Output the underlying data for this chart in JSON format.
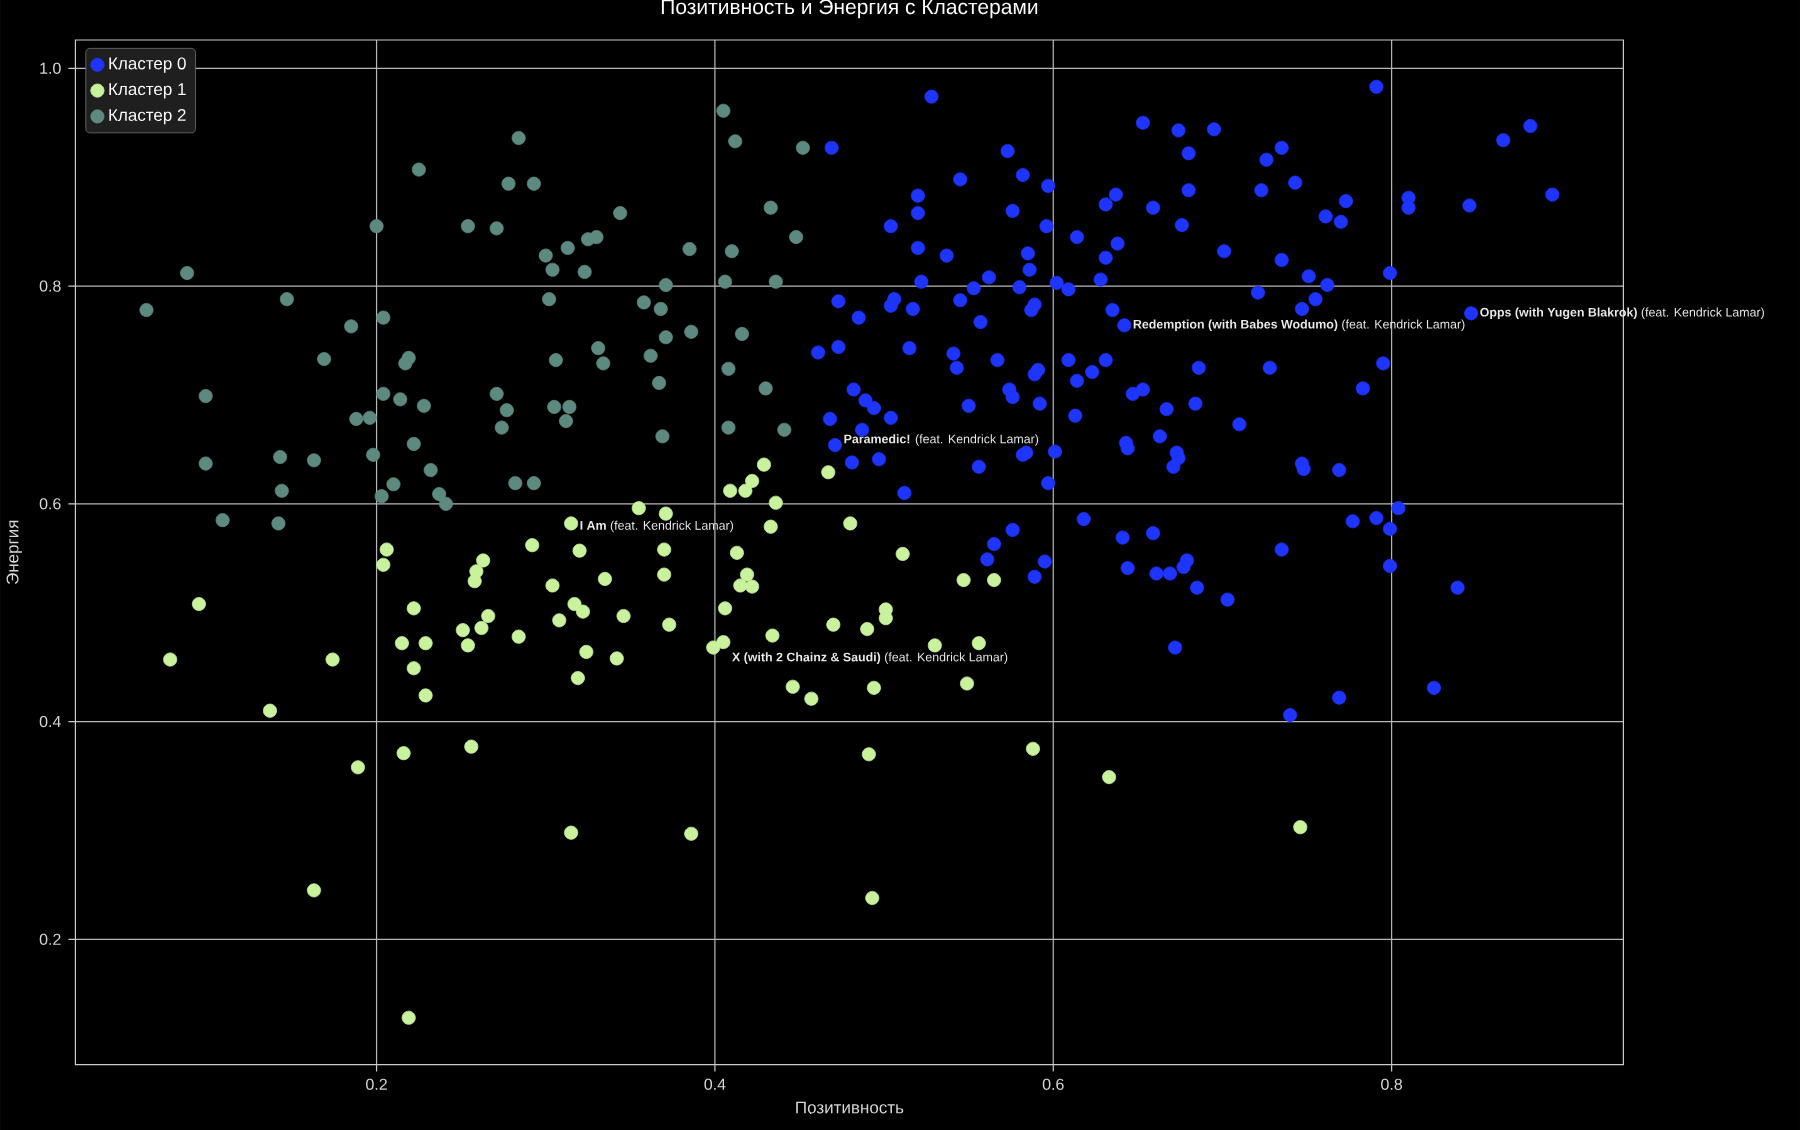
{
  "chart_data": {
    "type": "scatter",
    "title": "Позитивность и Энергия с Кластерами",
    "xlabel": "Позитивность",
    "ylabel": "Энергия",
    "series": [
      {
        "name": "Кластер 0",
        "color": "#1e34ff",
        "x": [
          0.528,
          0.469,
          0.573,
          0.545,
          0.582,
          0.597,
          0.52,
          0.52,
          0.576,
          0.504,
          0.596,
          0.614,
          0.631,
          0.637,
          0.52,
          0.537,
          0.585,
          0.586,
          0.631,
          0.638,
          0.522,
          0.562,
          0.553,
          0.58,
          0.602,
          0.609,
          0.628,
          0.473,
          0.506,
          0.504,
          0.517,
          0.545,
          0.589,
          0.587,
          0.635,
          0.485,
          0.557,
          0.473,
          0.461,
          0.515,
          0.541,
          0.543,
          0.567,
          0.609,
          0.631,
          0.614,
          0.623,
          0.589,
          0.591,
          0.482,
          0.489,
          0.494,
          0.574,
          0.576,
          0.592,
          0.55,
          0.468,
          0.504,
          0.487,
          0.613,
          0.471,
          0.497,
          0.481,
          0.582,
          0.584,
          0.601,
          0.556,
          0.597,
          0.512,
          0.618,
          0.576,
          0.565,
          0.561,
          0.595,
          0.589,
          0.791,
          0.653,
          0.674,
          0.695,
          0.68,
          0.726,
          0.735,
          0.866,
          0.882,
          0.659,
          0.68,
          0.723,
          0.743,
          0.676,
          0.773,
          0.761,
          0.77,
          0.81,
          0.81,
          0.846,
          0.895,
          0.701,
          0.735,
          0.751,
          0.762,
          0.799,
          0.721,
          0.755,
          0.747,
          0.642,
          0.847,
          0.686,
          0.728,
          0.795,
          0.783,
          0.647,
          0.653,
          0.667,
          0.684,
          0.71,
          0.663,
          0.643,
          0.644,
          0.673,
          0.674,
          0.671,
          0.747,
          0.748,
          0.769,
          0.804,
          0.777,
          0.791,
          0.799,
          0.641,
          0.659,
          0.735,
          0.644,
          0.661,
          0.669,
          0.677,
          0.679,
          0.685,
          0.703,
          0.799,
          0.839,
          0.672,
          0.769,
          0.825,
          0.74
        ],
        "values": [
          0.974,
          0.927,
          0.924,
          0.898,
          0.902,
          0.892,
          0.883,
          0.867,
          0.869,
          0.855,
          0.855,
          0.845,
          0.875,
          0.884,
          0.835,
          0.828,
          0.83,
          0.815,
          0.826,
          0.839,
          0.804,
          0.808,
          0.798,
          0.799,
          0.803,
          0.797,
          0.806,
          0.786,
          0.788,
          0.782,
          0.779,
          0.787,
          0.783,
          0.778,
          0.778,
          0.771,
          0.767,
          0.744,
          0.739,
          0.743,
          0.738,
          0.725,
          0.732,
          0.732,
          0.732,
          0.713,
          0.721,
          0.719,
          0.723,
          0.705,
          0.695,
          0.688,
          0.705,
          0.698,
          0.692,
          0.69,
          0.678,
          0.679,
          0.668,
          0.681,
          0.654,
          0.641,
          0.638,
          0.645,
          0.647,
          0.648,
          0.634,
          0.619,
          0.61,
          0.586,
          0.576,
          0.563,
          0.549,
          0.547,
          0.533,
          0.983,
          0.95,
          0.943,
          0.944,
          0.922,
          0.916,
          0.927,
          0.934,
          0.947,
          0.872,
          0.888,
          0.888,
          0.895,
          0.856,
          0.878,
          0.864,
          0.859,
          0.881,
          0.872,
          0.874,
          0.884,
          0.832,
          0.824,
          0.809,
          0.801,
          0.812,
          0.794,
          0.788,
          0.779,
          0.764,
          0.775,
          0.725,
          0.725,
          0.729,
          0.706,
          0.701,
          0.705,
          0.687,
          0.692,
          0.673,
          0.662,
          0.656,
          0.651,
          0.647,
          0.642,
          0.634,
          0.637,
          0.632,
          0.631,
          0.596,
          0.584,
          0.587,
          0.577,
          0.569,
          0.573,
          0.558,
          0.541,
          0.536,
          0.536,
          0.542,
          0.548,
          0.523,
          0.512,
          0.543,
          0.523,
          0.468,
          0.422,
          0.431,
          0.406
        ]
      },
      {
        "name": "Кластер 1",
        "color": "#c8f29c",
        "x": [
          0.429,
          0.467,
          0.409,
          0.418,
          0.422,
          0.436,
          0.355,
          0.371,
          0.48,
          0.433,
          0.315,
          0.206,
          0.204,
          0.292,
          0.32,
          0.263,
          0.259,
          0.258,
          0.304,
          0.095,
          0.222,
          0.317,
          0.322,
          0.266,
          0.251,
          0.262,
          0.308,
          0.284,
          0.215,
          0.229,
          0.254,
          0.324,
          0.078,
          0.174,
          0.222,
          0.319,
          0.229,
          0.137,
          0.216,
          0.256,
          0.189,
          0.315,
          0.163,
          0.219,
          0.37,
          0.413,
          0.511,
          0.335,
          0.37,
          0.419,
          0.415,
          0.422,
          0.547,
          0.565,
          0.346,
          0.373,
          0.406,
          0.501,
          0.501,
          0.47,
          0.49,
          0.434,
          0.342,
          0.399,
          0.405,
          0.53,
          0.556,
          0.446,
          0.457,
          0.494,
          0.549,
          0.491,
          0.588,
          0.633,
          0.386,
          0.493,
          0.746
        ],
        "values": [
          0.636,
          0.629,
          0.612,
          0.612,
          0.621,
          0.601,
          0.596,
          0.591,
          0.582,
          0.579,
          0.582,
          0.558,
          0.544,
          0.562,
          0.557,
          0.548,
          0.538,
          0.529,
          0.525,
          0.508,
          0.504,
          0.508,
          0.501,
          0.497,
          0.484,
          0.486,
          0.493,
          0.478,
          0.472,
          0.472,
          0.47,
          0.464,
          0.457,
          0.457,
          0.449,
          0.44,
          0.424,
          0.41,
          0.371,
          0.377,
          0.358,
          0.298,
          0.245,
          0.128,
          0.558,
          0.555,
          0.554,
          0.531,
          0.535,
          0.535,
          0.525,
          0.524,
          0.53,
          0.53,
          0.497,
          0.489,
          0.504,
          0.503,
          0.495,
          0.489,
          0.485,
          0.479,
          0.458,
          0.468,
          0.473,
          0.47,
          0.472,
          0.432,
          0.421,
          0.431,
          0.435,
          0.37,
          0.375,
          0.349,
          0.297,
          0.238,
          0.303
        ]
      },
      {
        "name": "Кластер 2",
        "color": "#5d8a80",
        "x": [
          0.284,
          0.225,
          0.278,
          0.293,
          0.2,
          0.254,
          0.271,
          0.325,
          0.33,
          0.313,
          0.3,
          0.304,
          0.323,
          0.088,
          0.064,
          0.147,
          0.302,
          0.185,
          0.204,
          0.169,
          0.219,
          0.217,
          0.306,
          0.331,
          0.099,
          0.204,
          0.214,
          0.228,
          0.271,
          0.277,
          0.274,
          0.305,
          0.314,
          0.312,
          0.188,
          0.196,
          0.222,
          0.099,
          0.143,
          0.163,
          0.198,
          0.232,
          0.144,
          0.21,
          0.203,
          0.237,
          0.241,
          0.282,
          0.293,
          0.109,
          0.142,
          0.405,
          0.412,
          0.452,
          0.344,
          0.433,
          0.385,
          0.41,
          0.448,
          0.371,
          0.406,
          0.436,
          0.358,
          0.368,
          0.386,
          0.371,
          0.416,
          0.334,
          0.362,
          0.367,
          0.408,
          0.43,
          0.408,
          0.441,
          0.369
        ],
        "values": [
          0.936,
          0.907,
          0.894,
          0.894,
          0.855,
          0.855,
          0.853,
          0.843,
          0.845,
          0.835,
          0.828,
          0.815,
          0.813,
          0.812,
          0.778,
          0.788,
          0.788,
          0.763,
          0.771,
          0.733,
          0.734,
          0.729,
          0.732,
          0.743,
          0.699,
          0.701,
          0.696,
          0.69,
          0.701,
          0.686,
          0.67,
          0.689,
          0.689,
          0.676,
          0.678,
          0.679,
          0.655,
          0.637,
          0.643,
          0.64,
          0.645,
          0.631,
          0.612,
          0.618,
          0.607,
          0.609,
          0.6,
          0.619,
          0.619,
          0.585,
          0.582,
          0.961,
          0.933,
          0.927,
          0.867,
          0.872,
          0.834,
          0.832,
          0.845,
          0.801,
          0.804,
          0.804,
          0.785,
          0.779,
          0.758,
          0.753,
          0.756,
          0.729,
          0.736,
          0.711,
          0.724,
          0.706,
          0.67,
          0.668,
          0.662
        ]
      }
    ],
    "xlim": [
      0.022,
      0.937
    ],
    "ylim": [
      0.085,
      1.026
    ],
    "xticks": [
      0.2,
      0.4,
      0.6,
      0.8
    ],
    "yticks": [
      0.2,
      0.4,
      0.6,
      0.8,
      {
        "value": 1,
        "label": "1.0"
      }
    ],
    "grid": true,
    "legend": "top left",
    "marker": "circle",
    "annotations": [
      {
        "text": "**Opps (with Yugen Blakrok)** (feat. Kendrick Lamar)",
        "x": 0.847,
        "y": 0.775
      },
      {
        "text": "**Redemption (with Babes Wodumo)** (feat. Kendrick Lamar)",
        "x": 0.642,
        "y": 0.764
      },
      {
        "text": "**Paramedic!** (feat. Kendrick Lamar)",
        "x": 0.471,
        "y": 0.654
      },
      {
        "text": "**I Am** (feat. Kendrick Lamar)",
        "x": 0.315,
        "y": 0.582
      },
      {
        "text": "**X (with 2 Chainz & Saudi)** (feat. Kendrick Lamar)",
        "x": 0.405,
        "y": 0.473
      }
    ]
  }
}
